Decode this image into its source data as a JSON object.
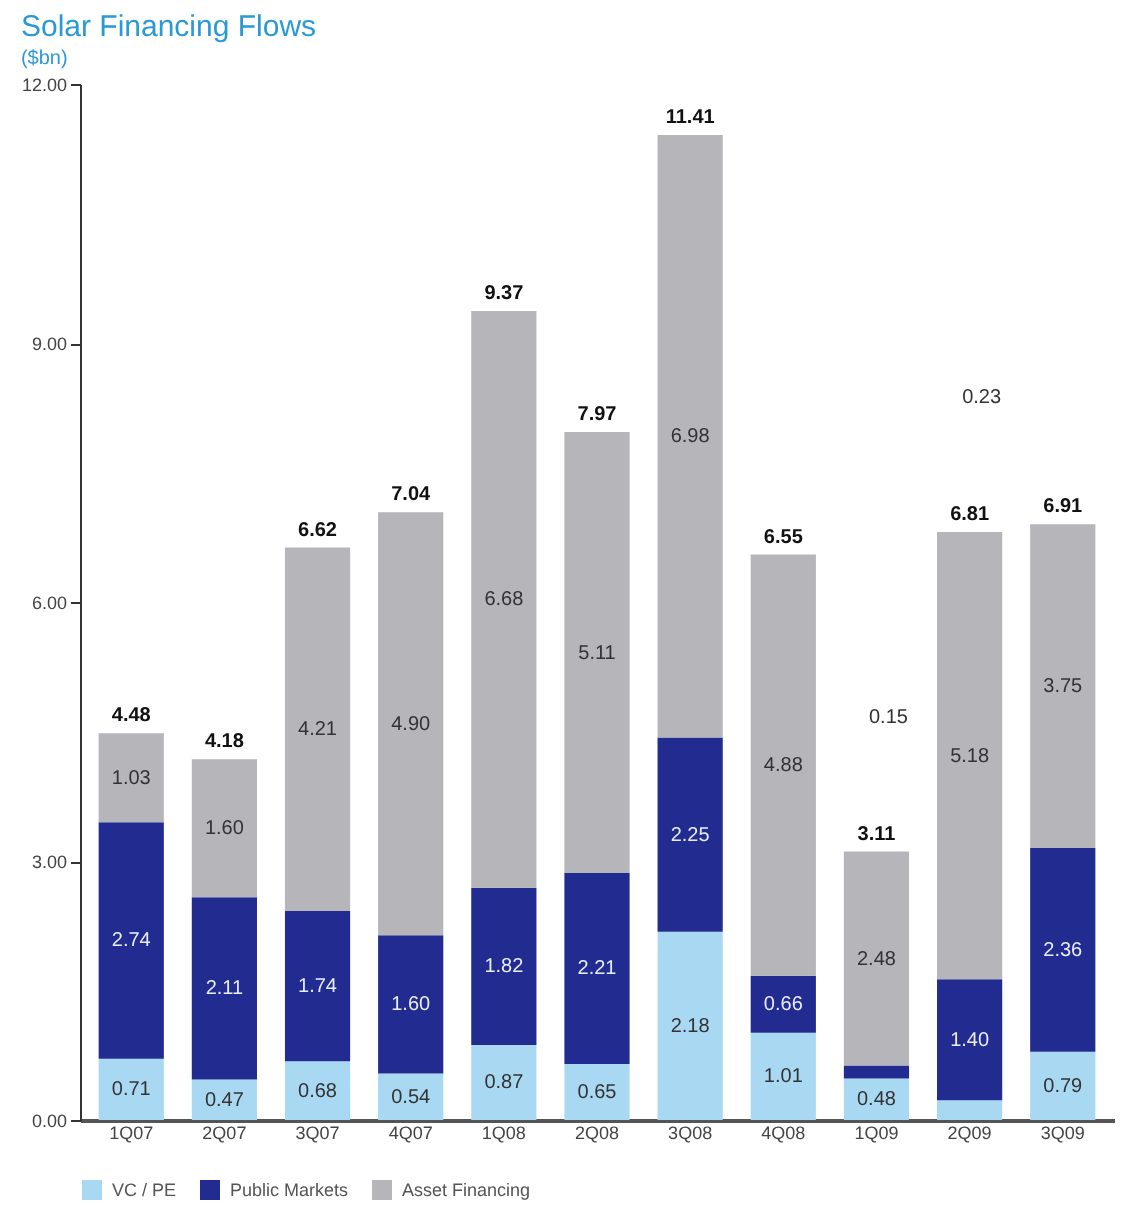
{
  "chart_data": {
    "type": "bar",
    "title": "Solar Financing Flows",
    "subtitle": "($bn)",
    "stacked": true,
    "categories": [
      "1Q07",
      "2Q07",
      "3Q07",
      "4Q07",
      "1Q08",
      "2Q08",
      "3Q08",
      "4Q08",
      "1Q09",
      "2Q09",
      "3Q09"
    ],
    "series": [
      {
        "name": "VC / PE",
        "color": "#a9d9f2",
        "values": [
          0.71,
          0.47,
          0.68,
          0.54,
          0.87,
          0.65,
          2.18,
          1.01,
          0.48,
          0.23,
          0.79
        ],
        "value_labels": [
          "0.71",
          "0.47",
          "0.68",
          "0.54",
          "0.87",
          "0.65",
          "2.18",
          "1.01",
          "0.48",
          null,
          "0.79"
        ]
      },
      {
        "name": "Public Markets",
        "color": "#222b8f",
        "values": [
          2.74,
          2.11,
          1.74,
          1.6,
          1.82,
          2.21,
          2.25,
          0.66,
          0.15,
          1.4,
          2.36
        ],
        "value_labels": [
          "2.74",
          "2.11",
          "1.74",
          "1.60",
          "1.82",
          "2.21",
          "2.25",
          "0.66",
          null,
          "1.40",
          "2.36"
        ]
      },
      {
        "name": "Asset Financing",
        "color": "#b5b5ba",
        "values": [
          1.03,
          1.6,
          4.21,
          4.9,
          6.68,
          5.11,
          6.98,
          4.88,
          2.48,
          5.18,
          3.75
        ],
        "value_labels": [
          "1.03",
          "1.60",
          "4.21",
          "4.90",
          "6.68",
          "5.11",
          "6.98",
          "4.88",
          "2.48",
          "5.18",
          "3.75"
        ]
      }
    ],
    "annotations": [
      "0.15",
      "0.23"
    ],
    "totals": [
      "4.48",
      "4.18",
      "6.62",
      "7.04",
      "9.37",
      "7.97",
      "11.41",
      "6.55",
      "3.11",
      "6.81",
      "6.91"
    ],
    "ylim": [
      0,
      12
    ],
    "yticks": [
      {
        "value": 0,
        "label": "0.00"
      },
      {
        "value": 3,
        "label": "3.00"
      },
      {
        "value": 6,
        "label": "6.00"
      },
      {
        "value": 9,
        "label": "9.00"
      },
      {
        "value": 12,
        "label": "12.00"
      }
    ],
    "grid": false,
    "legend": "bottom"
  }
}
